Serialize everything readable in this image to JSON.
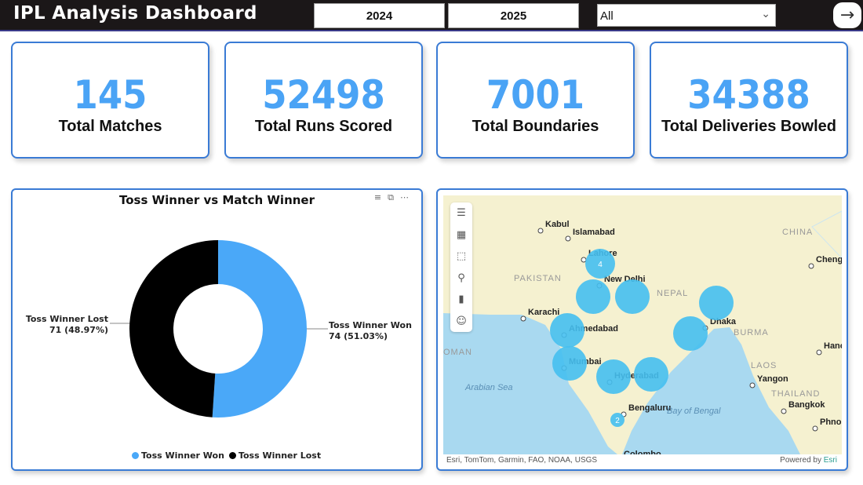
{
  "header": {
    "title": "IPL Analysis Dashboard",
    "seasons": [
      "2024",
      "2025"
    ],
    "dropdown": {
      "selected": "All"
    },
    "nav_icon": "arrow-right-icon"
  },
  "kpis": [
    {
      "value": "145",
      "label": "Total Matches"
    },
    {
      "value": "52498",
      "label": "Total Runs Scored"
    },
    {
      "value": "7001",
      "label": "Total Boundaries"
    },
    {
      "value": "34388",
      "label": "Total Deliveries Bowled"
    }
  ],
  "chart_data": {
    "type": "pie",
    "donut": true,
    "title": "Toss Winner vs Match Winner",
    "categories": [
      "Toss Winner Won",
      "Toss Winner Lost"
    ],
    "values": [
      74,
      71
    ],
    "percent_labels": [
      "74 (51.03%)",
      "71 (48.97%)"
    ],
    "colors": [
      "#4aa8f8",
      "#000000"
    ],
    "legend": "bottom"
  },
  "map": {
    "cities": [
      "Kabul",
      "Islamabad",
      "Lahore",
      "New Delhi",
      "Karachi",
      "Ahmedabad",
      "Mumbai",
      "Hyderabad",
      "Bengaluru",
      "Dhaka",
      "Yangon",
      "Bangkok",
      "Chengdu",
      "Colombo",
      "Phnom",
      "Hanoi"
    ],
    "regions": [
      "PAKISTAN",
      "CHINA",
      "NEPAL",
      "BURMA",
      "LAOS",
      "THAILAND",
      "OMAN"
    ],
    "seas": [
      "Arabian Sea",
      "Bay of Bengal"
    ],
    "cluster_labels": [
      "4",
      "2"
    ],
    "bubble_color": "#45bff0",
    "attribution": "Esri, TomTom, Garmin, FAO, NOAA, USGS",
    "powered_by": "Powered by",
    "powered_brand": "Esri"
  }
}
